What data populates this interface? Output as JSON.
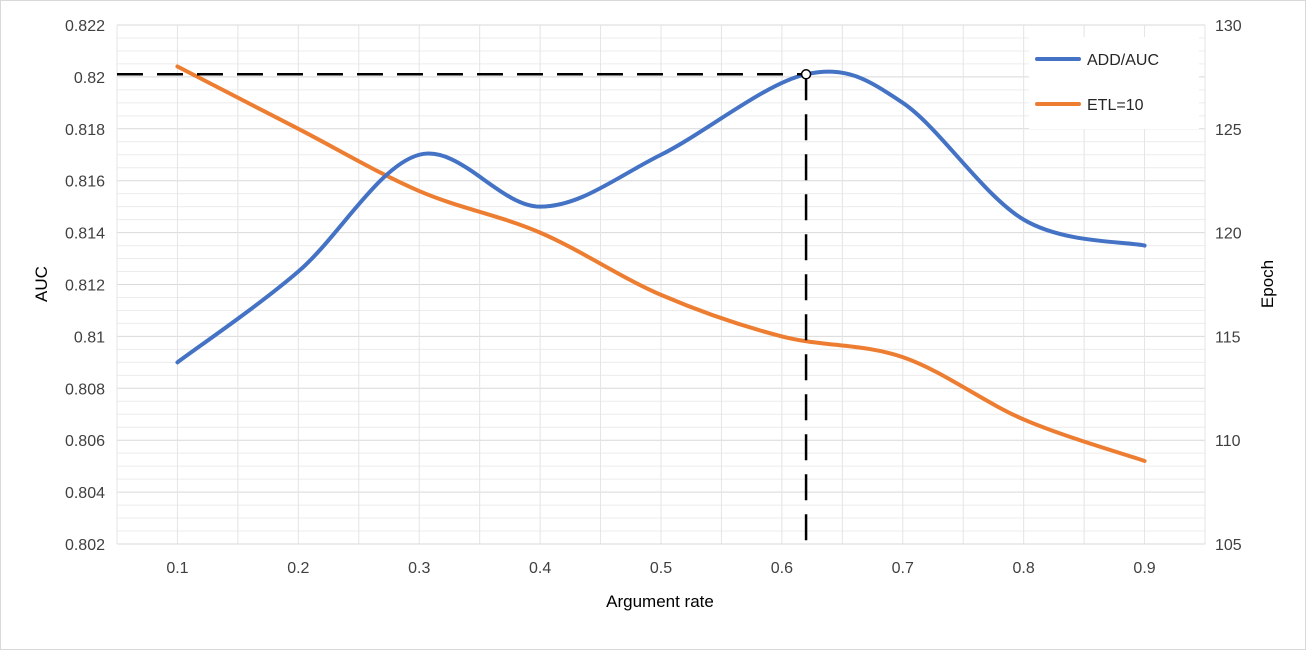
{
  "chart_data": {
    "type": "line",
    "title": "",
    "xlabel": "Argument rate",
    "ylabel_left": "AUC",
    "ylabel_right": "Epoch",
    "x_ticks": [
      "0.1",
      "0.2",
      "0.3",
      "0.4",
      "0.5",
      "0.6",
      "0.7",
      "0.8",
      "0.9"
    ],
    "xlim": [
      0.05,
      0.95
    ],
    "y_left_lim": [
      0.802,
      0.822
    ],
    "y_left_ticks": [
      "0.802",
      "0.804",
      "0.806",
      "0.808",
      "0.81",
      "0.812",
      "0.814",
      "0.816",
      "0.818",
      "0.82",
      "0.822"
    ],
    "y_right_lim": [
      105,
      130
    ],
    "y_right_ticks": [
      "105",
      "110",
      "115",
      "120",
      "125",
      "130"
    ],
    "grid": true,
    "legend_position": "top-right",
    "series": [
      {
        "name": "ADD/AUC",
        "axis": "left",
        "color": "#4472C4",
        "x": [
          0.1,
          0.2,
          0.3,
          0.4,
          0.5,
          0.62,
          0.7,
          0.8,
          0.9
        ],
        "values": [
          0.809,
          0.8125,
          0.817,
          0.815,
          0.817,
          0.8201,
          0.819,
          0.8145,
          0.8135
        ]
      },
      {
        "name": "ETL=10",
        "axis": "right",
        "color": "#ED7D31",
        "x": [
          0.1,
          0.2,
          0.3,
          0.4,
          0.5,
          0.6,
          0.7,
          0.8,
          0.9
        ],
        "values": [
          128,
          125,
          122,
          120,
          117,
          115,
          114,
          111,
          109
        ]
      }
    ],
    "annotation": {
      "marker_x": 0.62,
      "marker_y": 0.8201,
      "style": "dashed crosshair to left axis and x axis",
      "color": "#000000"
    }
  }
}
